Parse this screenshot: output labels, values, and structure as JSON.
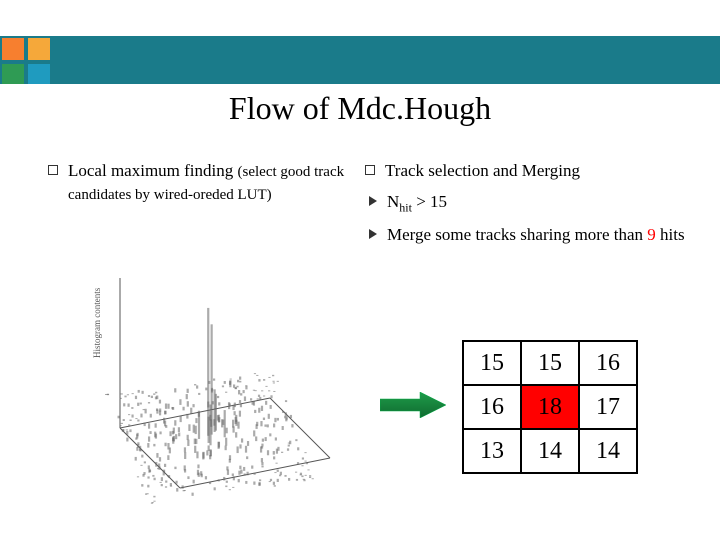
{
  "title": "Flow of Mdc.Hough",
  "corner_colors": [
    "#f77f2f",
    "#f5a83a",
    "#2f9b54",
    "#1f9bbf"
  ],
  "left": {
    "heading_strong": "Local maximum finding ",
    "heading_small": "(select good track candidates by wired-oreded LUT)"
  },
  "right": {
    "heading": "Track selection and Merging",
    "item1_pre": "N",
    "item1_sub": "hit",
    "item1_post": " > 15",
    "item2_a": "Merge some tracks sharing more than ",
    "item2_num": "9",
    "item2_b": " hits",
    "highlight_color": "#ff0000"
  },
  "grid": {
    "rows": [
      [
        "15",
        "15",
        "16"
      ],
      [
        "16",
        "18",
        "17"
      ],
      [
        "13",
        "14",
        "14"
      ]
    ],
    "highlight_row": 1,
    "highlight_col": 1
  },
  "arrow": {
    "fill1": "#1f9b4a",
    "fill2": "#0f6b30"
  },
  "plot": {
    "axis_color": "#555555",
    "ylabel": "Histogram contents"
  }
}
